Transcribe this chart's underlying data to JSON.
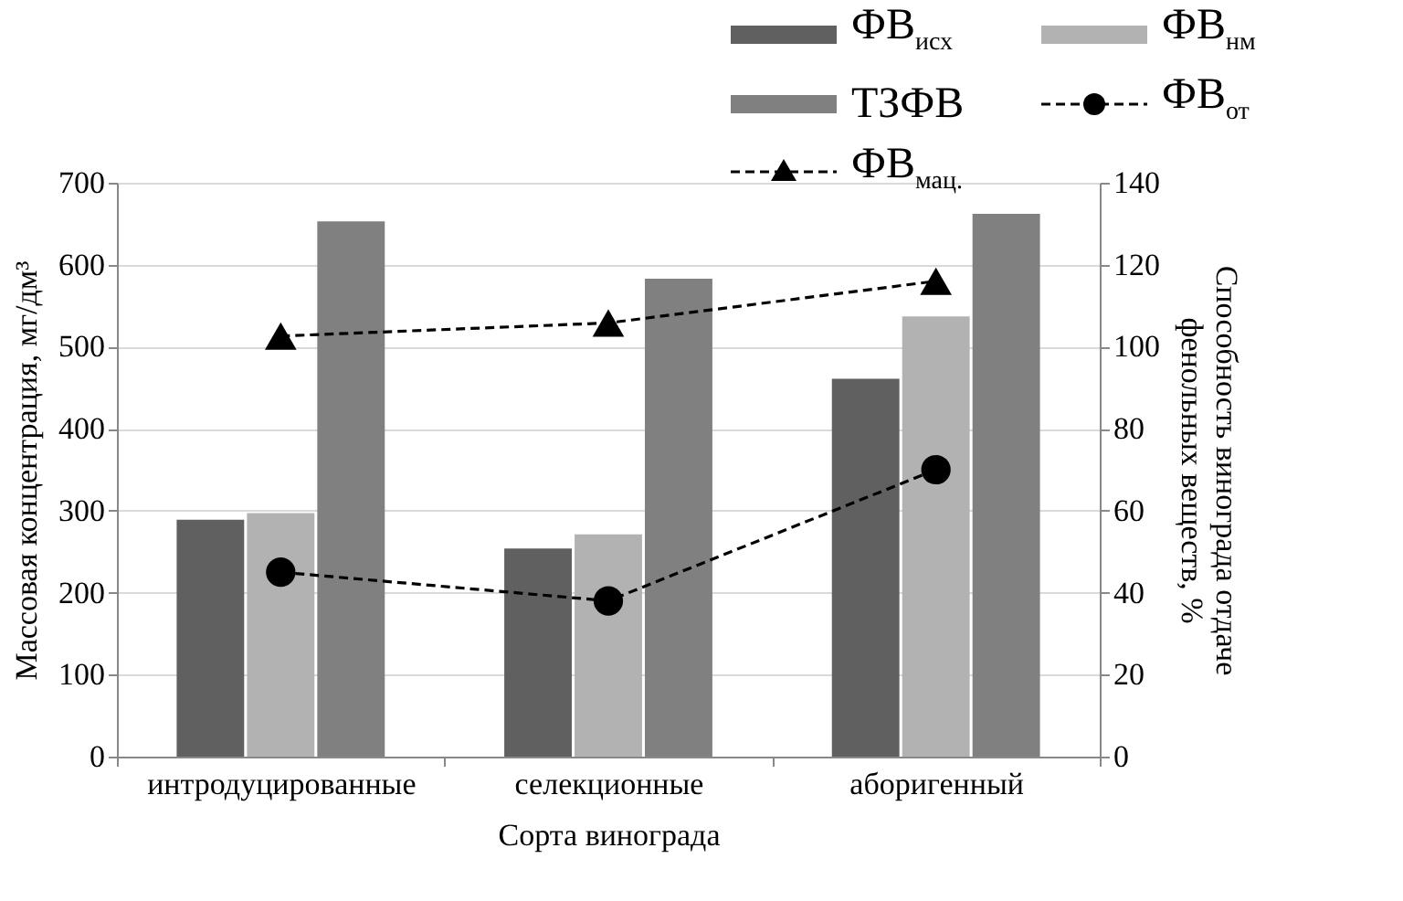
{
  "chart_data": {
    "type": "bar",
    "xlabel": "Сорта винограда",
    "ylabel": "Массовая концентрация, мг/дм³",
    "y2label": "Способность винограда отдаче\nфенольных веществ, %",
    "categories": [
      "интродуцированные",
      "селекционные",
      "аборигенный"
    ],
    "series": [
      {
        "name": "ФВ$_{исх}$",
        "color": "#606060",
        "values": [
          289,
          254,
          461
        ]
      },
      {
        "name": "ФВ$_{нм}$",
        "color": "#b2b2b2",
        "values": [
          297,
          271,
          537
        ]
      },
      {
        "name": "ТЗФВ",
        "color": "#808080",
        "values": [
          653,
          583,
          662
        ]
      },
      {
        "name": "ФВ$_{от}$",
        "type": "line",
        "axis": "y2",
        "color": "#000000",
        "marker": "circle",
        "line_style": "dashed",
        "values": [
          45,
          38,
          70
        ]
      },
      {
        "name": "ФВ$_{мац.}$",
        "type": "line",
        "axis": "y2",
        "color": "#000000",
        "marker": "triangle",
        "line_style": "dashed",
        "values": [
          102.6,
          105.8,
          116
        ]
      }
    ],
    "ylim": [
      0,
      700
    ],
    "yticks": [
      0,
      100,
      200,
      300,
      400,
      500,
      600,
      700
    ],
    "y2lim": [
      0,
      140
    ],
    "y2ticks": [
      0,
      20,
      40,
      60,
      80,
      100,
      120,
      140
    ],
    "grid": "y",
    "legend": "top right"
  }
}
